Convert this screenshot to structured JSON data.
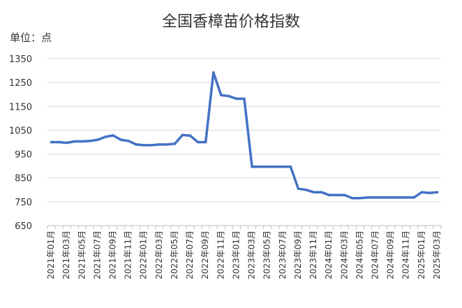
{
  "chart_data": {
    "type": "line",
    "title": "全国香樟苗价格指数",
    "unit_label": "单位：点",
    "xlabel": "",
    "ylabel": "",
    "ylim": [
      650,
      1350
    ],
    "yticks": [
      650,
      750,
      850,
      950,
      1050,
      1150,
      1250,
      1350
    ],
    "grid": true,
    "legend": "none",
    "line_color": "#4472c4",
    "x_tick_labels": [
      "2021年01月",
      "2021年03月",
      "2021年05月",
      "2021年07月",
      "2021年09月",
      "2021年11月",
      "2022年01月",
      "2022年03月",
      "2022年05月",
      "2022年07月",
      "2022年09月",
      "2022年11月",
      "2023年01月",
      "2023年03月",
      "2023年05月",
      "2023年07月",
      "2023年09月",
      "2023年11月",
      "2024年01月",
      "2024年03月",
      "2024年05月",
      "2024年07月",
      "2024年09月",
      "2024年11月",
      "2025年01月",
      "2025年03月"
    ],
    "x": [
      "2021-01",
      "2021-02",
      "2021-03",
      "2021-04",
      "2021-05",
      "2021-06",
      "2021-07",
      "2021-08",
      "2021-09",
      "2021-10",
      "2021-11",
      "2021-12",
      "2022-01",
      "2022-02",
      "2022-03",
      "2022-04",
      "2022-05",
      "2022-06",
      "2022-07",
      "2022-08",
      "2022-09",
      "2022-10",
      "2022-11",
      "2022-12",
      "2023-01",
      "2023-02",
      "2023-03",
      "2023-04",
      "2023-05",
      "2023-06",
      "2023-07",
      "2023-08",
      "2023-09",
      "2023-10",
      "2023-11",
      "2023-12",
      "2024-01",
      "2024-02",
      "2024-03",
      "2024-04",
      "2024-05",
      "2024-06",
      "2024-07",
      "2024-08",
      "2024-09",
      "2024-10",
      "2024-11",
      "2024-12",
      "2025-01",
      "2025-02",
      "2025-03"
    ],
    "series": [
      {
        "values": [
          1000,
          1000,
          997,
          1003,
          1003,
          1005,
          1010,
          1022,
          1028,
          1010,
          1005,
          990,
          987,
          987,
          990,
          990,
          993,
          1030,
          1027,
          1000,
          1000,
          1292,
          1197,
          1193,
          1182,
          1182,
          897,
          897,
          897,
          897,
          897,
          897,
          805,
          800,
          790,
          790,
          778,
          778,
          778,
          765,
          765,
          768,
          768,
          768,
          768,
          768,
          768,
          768,
          790,
          787,
          790
        ]
      }
    ]
  }
}
